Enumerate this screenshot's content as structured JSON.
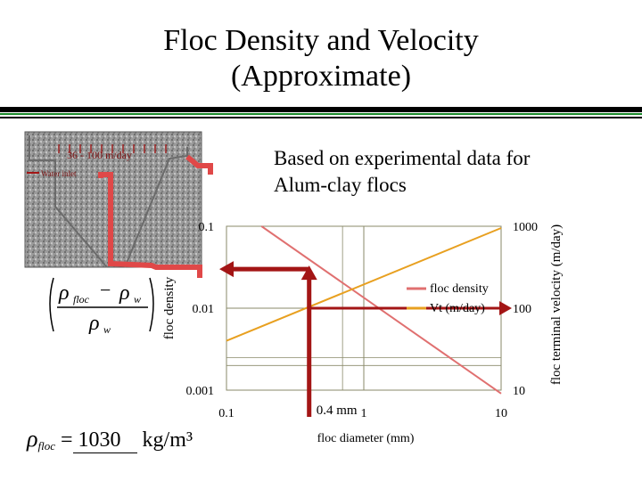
{
  "slide": {
    "title_line1": "Floc Density and Velocity",
    "title_line2": "(Approximate)",
    "note": "Based on experimental data for\nAlum-clay flocs",
    "photo_caption_top": "36 - 100 m/day",
    "photo_caption_mid": "Water inlet",
    "formula_rho": "ρ",
    "formula_sub_floc": "floc",
    "formula_minus": "−",
    "formula_sub_w": "w",
    "result_rho": "ρ",
    "result_sub": "floc",
    "result_eq": "=",
    "result_value": "1030",
    "result_unit": "kg/m³"
  },
  "chart_data": {
    "type": "line",
    "xlabel": "floc diameter (mm)",
    "ylabel_left": "floc density",
    "ylabel_right": "floc terminal velocity (m/day)",
    "x_scale": "log",
    "xlim": [
      0.1,
      10
    ],
    "ylim_left": [
      0.001,
      0.1
    ],
    "ylim_right": [
      10,
      1000
    ],
    "x_ticks": [
      0.1,
      1,
      10
    ],
    "x_tick_labels": [
      "0.1",
      "1",
      "10"
    ],
    "y_left_ticks": [
      0.001,
      0.01,
      0.1
    ],
    "y_left_tick_labels": [
      "0.001",
      "0.01",
      "0.1"
    ],
    "y_right_ticks": [
      10,
      100,
      1000
    ],
    "y_right_tick_labels": [
      "10",
      "100",
      "1000"
    ],
    "legend_placement": "right",
    "colors": {
      "density": "#e07070",
      "velocity": "#e8a020",
      "annotation": "#a31515",
      "grid": "#8a8a6a"
    },
    "series": [
      {
        "name": "floc density",
        "axis": "left",
        "x": [
          0.18,
          10
        ],
        "y": [
          0.1,
          0.00091
        ]
      },
      {
        "name": "Vt (m/day)",
        "axis": "right",
        "x": [
          0.1,
          10
        ],
        "y": [
          40,
          950
        ]
      }
    ],
    "annotation": {
      "label": "0.4 mm",
      "x": 0.4,
      "density_at_x": 0.03,
      "velocity_at_x": 100
    }
  }
}
